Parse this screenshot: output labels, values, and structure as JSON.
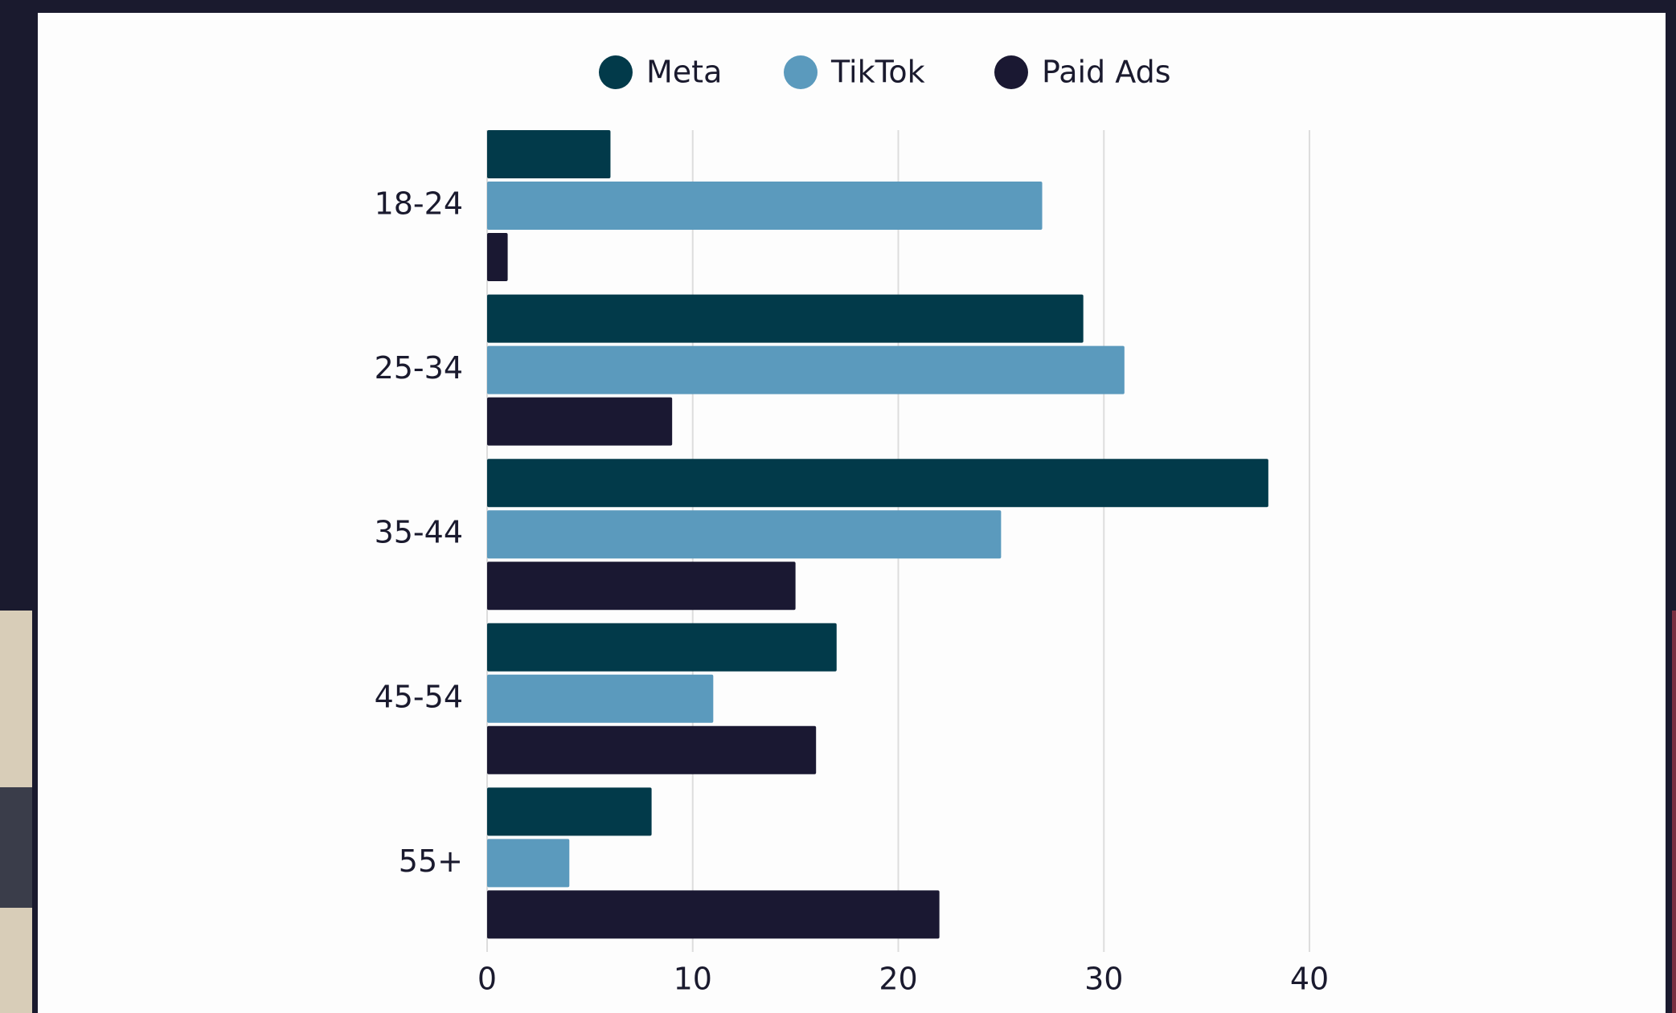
{
  "chart_data": {
    "type": "hbar",
    "categories": [
      "18-24",
      "25-34",
      "35-44",
      "45-54",
      "55+"
    ],
    "series": [
      {
        "name": "Meta",
        "color": "#023a4a",
        "values": [
          6,
          29,
          38,
          17,
          8
        ]
      },
      {
        "name": "TikTok",
        "color": "#5b9abd",
        "values": [
          27,
          31,
          25,
          11,
          4
        ]
      },
      {
        "name": "Paid Ads",
        "color": "#1a1832",
        "values": [
          1,
          9,
          15,
          16,
          22
        ]
      }
    ],
    "xlim": [
      0,
      40
    ],
    "xticks": [
      0,
      10,
      20,
      30,
      40
    ],
    "grid": true,
    "legend": "top"
  }
}
